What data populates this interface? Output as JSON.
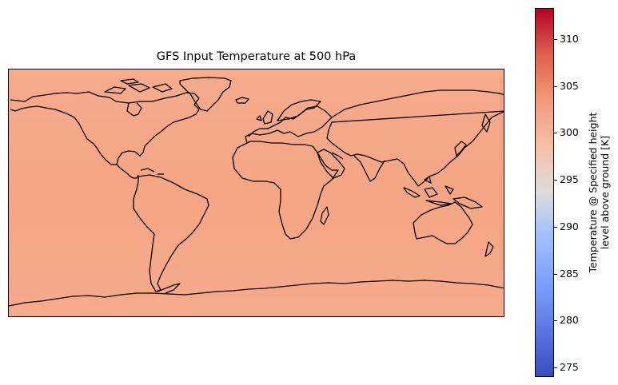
{
  "map": {
    "title": "GFS Input Temperature at 500 hPa",
    "projection": "PlateCarree",
    "extent_lon": [
      -180,
      180
    ],
    "extent_lat": [
      -90,
      90
    ],
    "field_color": "#f5a88a",
    "coastline_color": "#000000"
  },
  "colorbar": {
    "colormap": "coolwarm",
    "range": [
      274.0,
      313.3
    ],
    "ticks": [
      "275",
      "280",
      "285",
      "290",
      "295",
      "300",
      "305",
      "310"
    ],
    "label_line1": "Temperature @ Specified height",
    "label_line2": "level above ground [K]"
  }
}
